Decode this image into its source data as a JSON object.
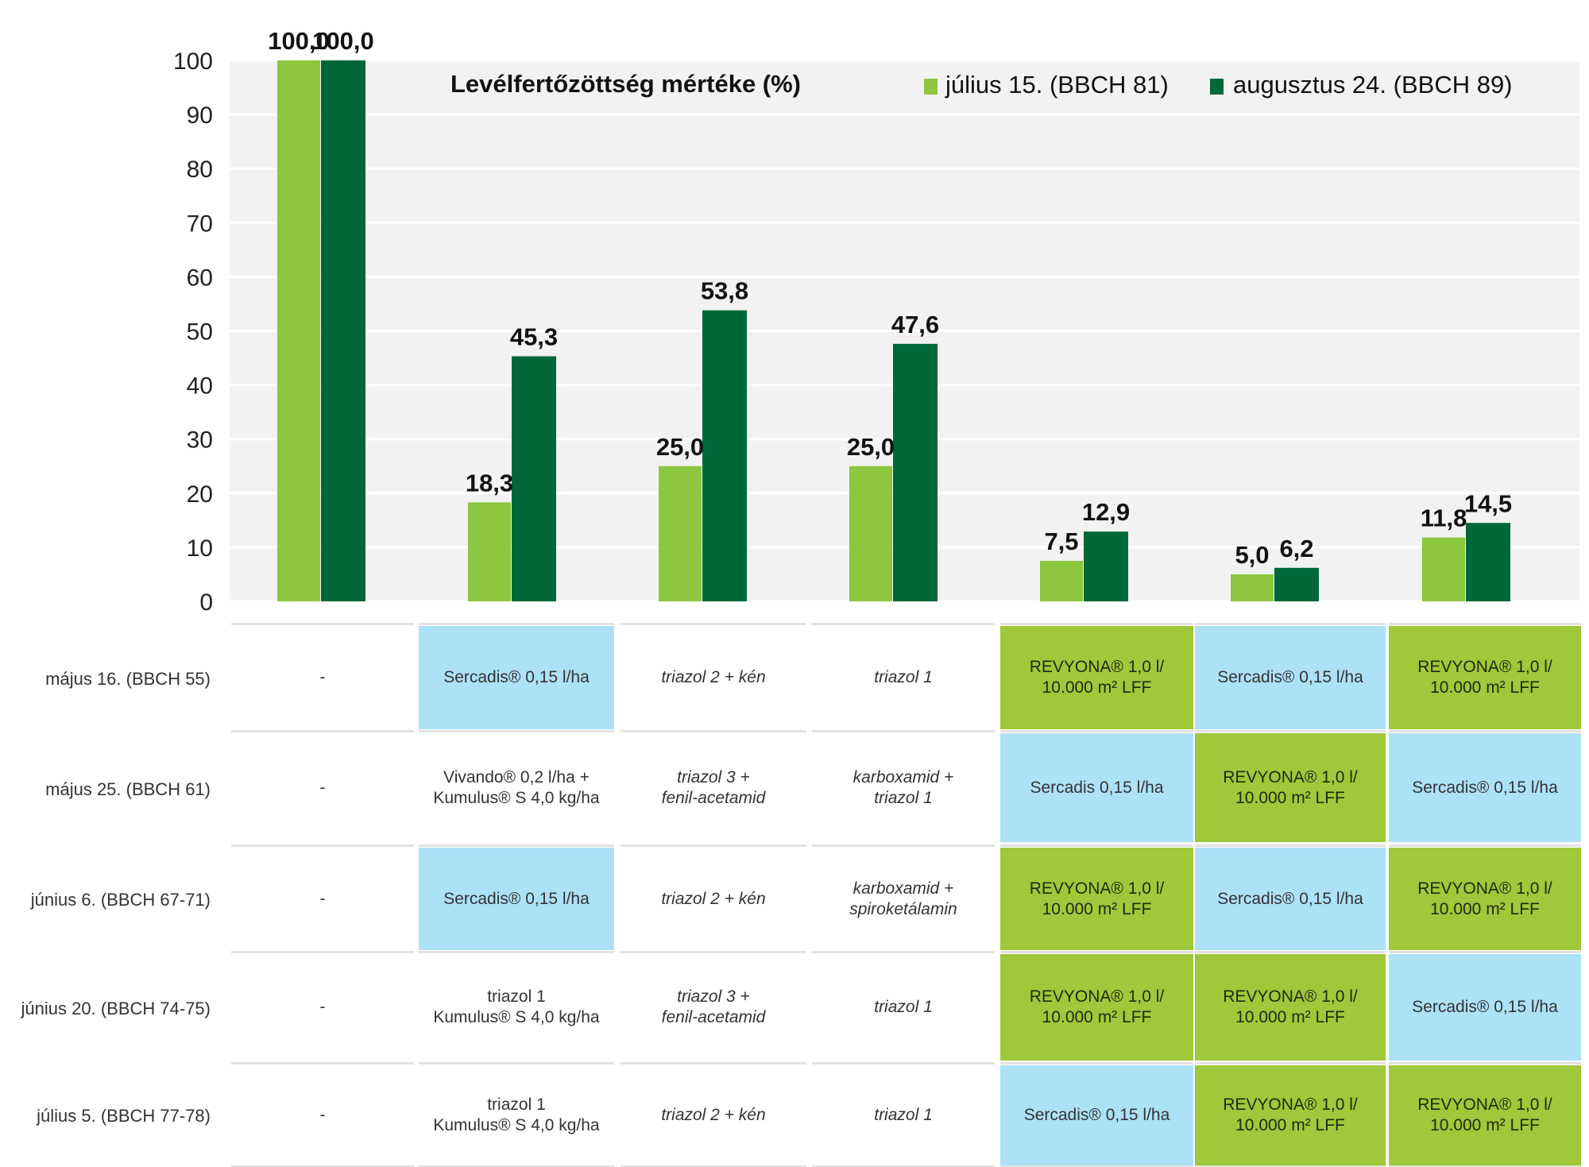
{
  "chart_data": {
    "type": "bar",
    "title": "Levélfertőzöttség mértéke (%)",
    "ylim": [
      0,
      100
    ],
    "yticks": [
      0,
      10,
      20,
      30,
      40,
      50,
      60,
      70,
      80,
      90,
      100
    ],
    "grid": true,
    "legend_position": "top-right",
    "categories": [
      "",
      "",
      "",
      "",
      "",
      "",
      ""
    ],
    "series": [
      {
        "name": "július 15. (BBCH 81)",
        "color": "#8dc63f",
        "values": [
          100.0,
          18.3,
          25.0,
          25.0,
          7.5,
          5.0,
          11.8
        ],
        "labels": [
          "100,0",
          "18,3",
          "25,0",
          "25,0",
          "7,5",
          "5,0",
          "11,8"
        ]
      },
      {
        "name": "augusztus 24. (BBCH 89)",
        "color": "#006838",
        "values": [
          100.0,
          45.3,
          53.8,
          47.6,
          12.9,
          6.2,
          14.5
        ],
        "labels": [
          "100,0",
          "45,3",
          "53,8",
          "47,6",
          "12,9",
          "6,2",
          "14,5"
        ]
      }
    ]
  },
  "schedule": {
    "rows": [
      {
        "label": "május 16. (BBCH 55)",
        "cells": [
          {
            "text": "-",
            "style": "plain"
          },
          {
            "text": "Sercadis® 0,15 l/ha",
            "style": "blue"
          },
          {
            "text": "triazol 2 + kén",
            "style": "italic"
          },
          {
            "text": "triazol 1",
            "style": "italic"
          },
          {
            "text": "REVYONA® 1,0 l/\n10.000 m² LFF",
            "style": "green"
          },
          {
            "text": "Sercadis® 0,15 l/ha",
            "style": "blue"
          },
          {
            "text": "REVYONA® 1,0 l/\n10.000 m² LFF",
            "style": "green"
          }
        ]
      },
      {
        "label": "május 25. (BBCH 61)",
        "cells": [
          {
            "text": "-",
            "style": "plain"
          },
          {
            "text": "Vivando® 0,2 l/ha +\nKumulus® S 4,0 kg/ha",
            "style": "plain"
          },
          {
            "text": "triazol 3 +\nfenil-acetamid",
            "style": "italic"
          },
          {
            "text": "karboxamid +\ntriazol 1",
            "style": "italic"
          },
          {
            "text": "Sercadis 0,15 l/ha",
            "style": "blue"
          },
          {
            "text": "REVYONA® 1,0 l/\n10.000 m² LFF",
            "style": "green"
          },
          {
            "text": "Sercadis® 0,15 l/ha",
            "style": "blue"
          }
        ]
      },
      {
        "label": "június 6. (BBCH 67-71)",
        "cells": [
          {
            "text": "-",
            "style": "plain"
          },
          {
            "text": "Sercadis® 0,15 l/ha",
            "style": "blue"
          },
          {
            "text": "triazol 2 + kén",
            "style": "italic"
          },
          {
            "text": "karboxamid +\nspiroketálamin",
            "style": "italic"
          },
          {
            "text": "REVYONA® 1,0 l/\n10.000 m² LFF",
            "style": "green"
          },
          {
            "text": "Sercadis® 0,15 l/ha",
            "style": "blue"
          },
          {
            "text": "REVYONA® 1,0 l/\n10.000 m² LFF",
            "style": "green"
          }
        ]
      },
      {
        "label": "június 20. (BBCH 74-75)",
        "cells": [
          {
            "text": "-",
            "style": "plain"
          },
          {
            "text": "triazol 1\nKumulus® S 4,0 kg/ha",
            "style": "plain"
          },
          {
            "text": "triazol 3 +\nfenil-acetamid",
            "style": "italic"
          },
          {
            "text": "triazol 1",
            "style": "italic"
          },
          {
            "text": "REVYONA® 1,0 l/\n10.000 m² LFF",
            "style": "green"
          },
          {
            "text": "REVYONA® 1,0 l/\n10.000 m² LFF",
            "style": "green"
          },
          {
            "text": "Sercadis® 0,15 l/ha",
            "style": "blue"
          }
        ]
      },
      {
        "label": "július 5. (BBCH 77-78)",
        "cells": [
          {
            "text": "-",
            "style": "plain"
          },
          {
            "text": "triazol 1\nKumulus® S 4,0 kg/ha",
            "style": "plain"
          },
          {
            "text": "triazol 2 + kén",
            "style": "italic"
          },
          {
            "text": "triazol 1",
            "style": "italic"
          },
          {
            "text": "Sercadis® 0,15 l/ha",
            "style": "blue"
          },
          {
            "text": "REVYONA® 1,0 l/\n10.000 m² LFF",
            "style": "green"
          },
          {
            "text": "REVYONA® 1,0 l/\n10.000 m² LFF",
            "style": "green"
          }
        ]
      }
    ]
  }
}
